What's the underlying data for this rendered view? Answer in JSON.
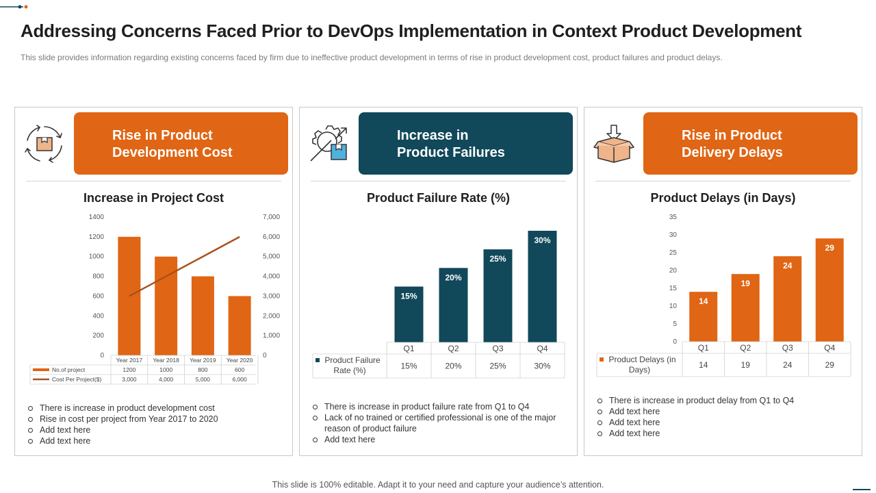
{
  "slide": {
    "title": "Addressing Concerns Faced Prior to DevOps Implementation in Context Product Development",
    "subtitle": "This slide provides  information  regarding  existing concerns faced by firm due to ineffective  product development  in terms of rise in product development  cost, product failures and product delays.",
    "footer": "This slide is 100% editable. Adapt it to your need and capture your audience’s attention."
  },
  "colors": {
    "orange": "#e06514",
    "teal": "#11485a",
    "line": "#a8521d"
  },
  "panels": [
    {
      "icon": "cycle-box-icon",
      "banner_line1": "Rise in Product",
      "banner_line2": "Development Cost",
      "chart_title": "Increase in Project Cost",
      "bullets": [
        "There is increase in product development  cost",
        "Rise in cost per project from Year 2017 to 2020",
        "Add text here",
        "Add text here"
      ]
    },
    {
      "icon": "gear-box-icon",
      "banner_line1": "Increase in",
      "banner_line2": "Product Failures",
      "chart_title": "Product Failure Rate (%)",
      "bullets": [
        "There is increase in product failure rate from Q1 to Q4",
        "Lack of no trained or certified professional  is one of the major reason of product failure",
        "Add text here"
      ]
    },
    {
      "icon": "open-box-icon",
      "banner_line1": "Rise in Product",
      "banner_line2": "Delivery Delays",
      "chart_title": "Product Delays (in Days)",
      "bullets": [
        "There is increase in product delay from Q1 to Q4",
        "Add text here",
        "Add text here",
        "Add text here"
      ]
    }
  ],
  "chart_data": [
    {
      "type": "bar",
      "title": "Increase in Project Cost",
      "categories": [
        "Year 2017",
        "Year 2018",
        "Year 2019",
        "Year 2020"
      ],
      "series": [
        {
          "name": "No.of project",
          "type": "bar",
          "axis": "left",
          "values": [
            1200,
            1000,
            800,
            600
          ],
          "labels": [
            "1200",
            "1000",
            "800",
            "600"
          ]
        },
        {
          "name": "Cost Per Project($)",
          "type": "line",
          "axis": "right",
          "values": [
            3000,
            4000,
            5000,
            6000
          ],
          "labels": [
            "3,000",
            "4,000",
            "5,000",
            "6,000"
          ]
        }
      ],
      "ylim": [
        0,
        1400
      ],
      "yticks": [
        "0",
        "200",
        "400",
        "600",
        "800",
        "1000",
        "1200",
        "1400"
      ],
      "y2lim": [
        0,
        7000
      ],
      "y2ticks": [
        "0",
        "1,000",
        "2,000",
        "3,000",
        "4,000",
        "5,000",
        "6,000",
        "7,000"
      ],
      "data_table": true
    },
    {
      "type": "bar",
      "title": "Product Failure Rate (%)",
      "categories": [
        "Q1",
        "Q2",
        "Q3",
        "Q4"
      ],
      "series": [
        {
          "name": "Product Failure Rate (%)",
          "values": [
            15,
            20,
            25,
            30
          ],
          "labels": [
            "15%",
            "20%",
            "25%",
            "30%"
          ],
          "table_labels": [
            "15%",
            "20%",
            "25%",
            "30%"
          ]
        }
      ],
      "ylim": [
        0,
        30
      ],
      "data_table": true
    },
    {
      "type": "bar",
      "title": "Product Delays (in Days)",
      "categories": [
        "Q1",
        "Q2",
        "Q3",
        "Q4"
      ],
      "series": [
        {
          "name": "Product Delays (in Days)",
          "values": [
            14,
            19,
            24,
            29
          ],
          "labels": [
            "14",
            "19",
            "24",
            "29"
          ],
          "table_labels": [
            "14",
            "19",
            "24",
            "29"
          ]
        }
      ],
      "ylim": [
        0,
        35
      ],
      "yticks": [
        "0",
        "5",
        "10",
        "15",
        "20",
        "25",
        "30",
        "35"
      ],
      "data_table": true
    }
  ]
}
